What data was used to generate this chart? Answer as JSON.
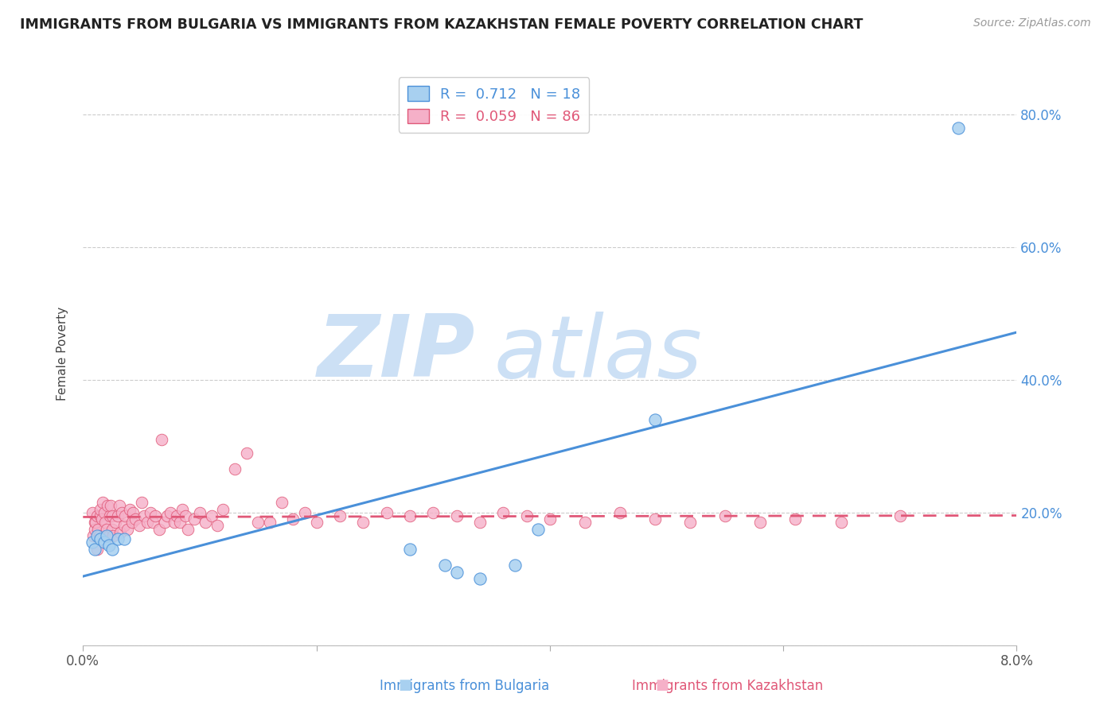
{
  "title": "IMMIGRANTS FROM BULGARIA VS IMMIGRANTS FROM KAZAKHSTAN FEMALE POVERTY CORRELATION CHART",
  "source": "Source: ZipAtlas.com",
  "ylabel": "Female Poverty",
  "xlim": [
    0.0,
    0.08
  ],
  "ylim": [
    0.0,
    0.88
  ],
  "legend_r_bulgaria": "R =  0.712",
  "legend_n_bulgaria": "N = 18",
  "legend_r_kazakhstan": "R =  0.059",
  "legend_n_kazakhstan": "N = 86",
  "color_bulgaria": "#a8d0f0",
  "color_kazakhstan": "#f5b0c8",
  "color_reg_bulgaria": "#4a90d9",
  "color_reg_kazakhstan": "#e05878",
  "watermark_zip": "ZIP",
  "watermark_atlas": "atlas",
  "watermark_color": "#cce0f5",
  "bulgaria_x": [
    0.0008,
    0.001,
    0.0012,
    0.0015,
    0.0018,
    0.002,
    0.0022,
    0.0025,
    0.003,
    0.0035,
    0.028,
    0.031,
    0.032,
    0.034,
    0.037,
    0.039,
    0.049,
    0.075
  ],
  "bulgaria_y": [
    0.155,
    0.145,
    0.165,
    0.16,
    0.155,
    0.165,
    0.15,
    0.145,
    0.16,
    0.16,
    0.145,
    0.12,
    0.11,
    0.1,
    0.12,
    0.175,
    0.34,
    0.78
  ],
  "kazakhstan_x": [
    0.0008,
    0.0009,
    0.001,
    0.001,
    0.0011,
    0.0012,
    0.0012,
    0.0013,
    0.0014,
    0.0015,
    0.0015,
    0.0016,
    0.0017,
    0.0018,
    0.0019,
    0.002,
    0.0021,
    0.0022,
    0.0023,
    0.0024,
    0.0025,
    0.0025,
    0.0026,
    0.0028,
    0.003,
    0.0031,
    0.0032,
    0.0033,
    0.0035,
    0.0036,
    0.0038,
    0.004,
    0.0042,
    0.0043,
    0.0045,
    0.0048,
    0.005,
    0.0052,
    0.0055,
    0.0058,
    0.006,
    0.0062,
    0.0065,
    0.0067,
    0.007,
    0.0072,
    0.0075,
    0.0078,
    0.008,
    0.0083,
    0.0085,
    0.0088,
    0.009,
    0.0095,
    0.01,
    0.0105,
    0.011,
    0.0115,
    0.012,
    0.013,
    0.014,
    0.015,
    0.016,
    0.017,
    0.018,
    0.019,
    0.02,
    0.022,
    0.024,
    0.026,
    0.028,
    0.03,
    0.032,
    0.034,
    0.036,
    0.038,
    0.04,
    0.043,
    0.046,
    0.049,
    0.052,
    0.055,
    0.058,
    0.061,
    0.065,
    0.07
  ],
  "kazakhstan_y": [
    0.2,
    0.165,
    0.185,
    0.175,
    0.185,
    0.145,
    0.195,
    0.175,
    0.165,
    0.195,
    0.205,
    0.19,
    0.215,
    0.2,
    0.185,
    0.175,
    0.21,
    0.165,
    0.195,
    0.21,
    0.175,
    0.195,
    0.165,
    0.185,
    0.195,
    0.21,
    0.17,
    0.2,
    0.18,
    0.195,
    0.175,
    0.205,
    0.185,
    0.2,
    0.19,
    0.18,
    0.215,
    0.195,
    0.185,
    0.2,
    0.185,
    0.195,
    0.175,
    0.31,
    0.185,
    0.195,
    0.2,
    0.185,
    0.195,
    0.185,
    0.205,
    0.195,
    0.175,
    0.19,
    0.2,
    0.185,
    0.195,
    0.18,
    0.205,
    0.265,
    0.29,
    0.185,
    0.185,
    0.215,
    0.19,
    0.2,
    0.185,
    0.195,
    0.185,
    0.2,
    0.195,
    0.2,
    0.195,
    0.185,
    0.2,
    0.195,
    0.19,
    0.185,
    0.2,
    0.19,
    0.185,
    0.195,
    0.185,
    0.19,
    0.185,
    0.195
  ]
}
